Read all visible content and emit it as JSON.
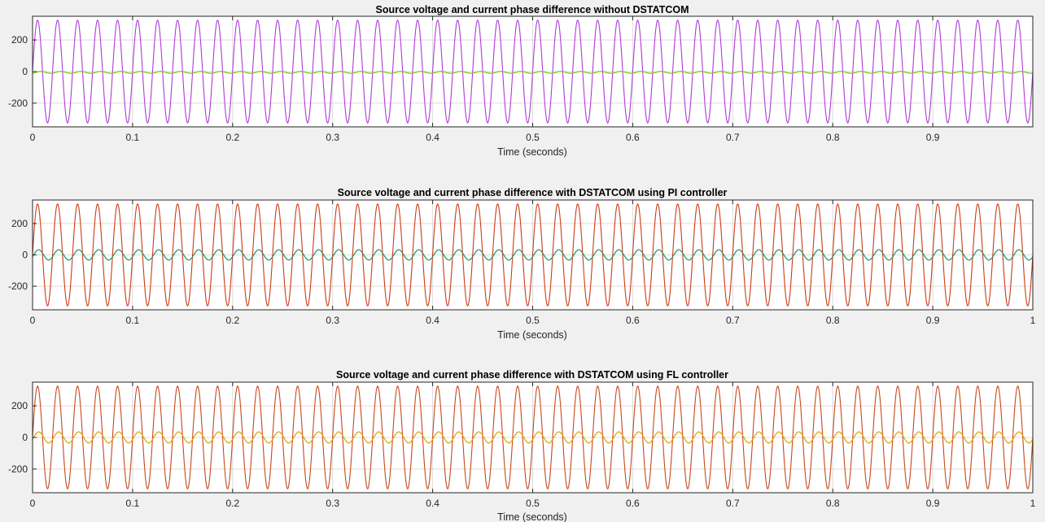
{
  "figure": {
    "background": "#f0f0f0"
  },
  "chart_data": [
    {
      "type": "line",
      "title": "Source voltage and current phase difference without DSTATCOM",
      "xlabel": "Time (seconds)",
      "ylabel": "",
      "xlim": [
        0,
        1
      ],
      "ylim": [
        -350,
        350
      ],
      "xticks": [
        0,
        0.1,
        0.2,
        0.3,
        0.4,
        0.5,
        0.6,
        0.7,
        0.8,
        0.9
      ],
      "xtick_labels": [
        "0",
        "0.1",
        "0.2",
        "0.3",
        "0.4",
        "0.5",
        "0.6",
        "0.7",
        "0.8",
        "0.9"
      ],
      "yticks": [
        200,
        0,
        -200
      ],
      "ytick_labels": [
        "200",
        "0",
        "-200"
      ],
      "grid": true,
      "series": [
        {
          "color": "#b23ad6",
          "waveform": "sine",
          "amplitude": 325,
          "frequency_hz": 50,
          "phase_deg": 0,
          "offset": 0
        },
        {
          "color": "#6ccf1c",
          "waveform": "sine",
          "amplitude": 6,
          "frequency_hz": 50,
          "phase_deg": -60,
          "offset": -5
        }
      ]
    },
    {
      "type": "line",
      "title": "Source voltage and current phase difference with DSTATCOM using PI controller",
      "xlabel": "Time (seconds)",
      "ylabel": "",
      "xlim": [
        0,
        1
      ],
      "ylim": [
        -350,
        350
      ],
      "xticks": [
        0,
        0.1,
        0.2,
        0.3,
        0.4,
        0.5,
        0.6,
        0.7,
        0.8,
        0.9,
        1
      ],
      "xtick_labels": [
        "0",
        "0.1",
        "0.2",
        "0.3",
        "0.4",
        "0.5",
        "0.6",
        "0.7",
        "0.8",
        "0.9",
        "1"
      ],
      "yticks": [
        200,
        0,
        -200
      ],
      "ytick_labels": [
        "200",
        "0",
        "-200"
      ],
      "grid": true,
      "series": [
        {
          "color": "#d03a14",
          "waveform": "sine",
          "amplitude": 325,
          "frequency_hz": 50,
          "phase_deg": 0,
          "offset": 0
        },
        {
          "color": "#2a9a76",
          "waveform": "sine",
          "amplitude": 33,
          "frequency_hz": 50,
          "phase_deg": -20,
          "offset": 0
        }
      ]
    },
    {
      "type": "line",
      "title": "Source voltage and current phase difference with DSTATCOM using FL controller",
      "xlabel": "Time (seconds)",
      "ylabel": "",
      "xlim": [
        0,
        1
      ],
      "ylim": [
        -350,
        350
      ],
      "xticks": [
        0,
        0.1,
        0.2,
        0.3,
        0.4,
        0.5,
        0.6,
        0.7,
        0.8,
        0.9,
        1
      ],
      "xtick_labels": [
        "0",
        "0.1",
        "0.2",
        "0.3",
        "0.4",
        "0.5",
        "0.6",
        "0.7",
        "0.8",
        "0.9",
        "1"
      ],
      "yticks": [
        200,
        0,
        -200
      ],
      "ytick_labels": [
        "200",
        "0",
        "-200"
      ],
      "grid": true,
      "series": [
        {
          "color": "#c9481a",
          "waveform": "sine",
          "amplitude": 325,
          "frequency_hz": 50,
          "phase_deg": 0,
          "offset": 0
        },
        {
          "color": "#e2a612",
          "waveform": "sine",
          "amplitude": 35,
          "frequency_hz": 50,
          "phase_deg": -20,
          "offset": 0
        }
      ]
    }
  ]
}
